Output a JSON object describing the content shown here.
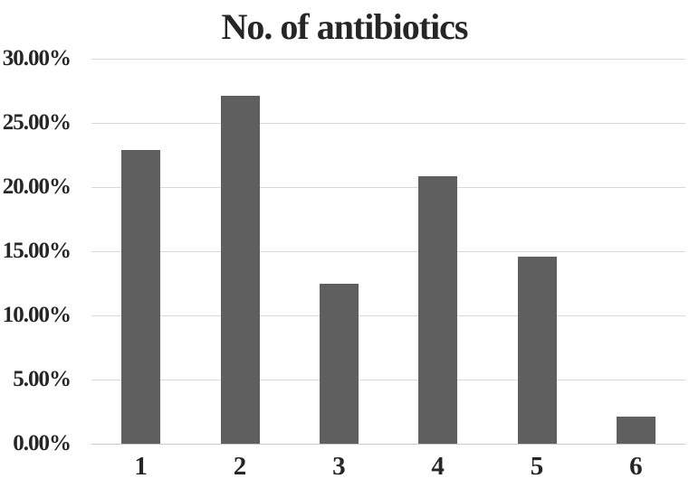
{
  "chart_data": {
    "type": "bar",
    "title": "No. of antibiotics",
    "categories": [
      "1",
      "2",
      "3",
      "4",
      "5",
      "6"
    ],
    "values": [
      22.92,
      27.08,
      12.5,
      20.83,
      14.58,
      2.08
    ],
    "xlabel": "",
    "ylabel": "",
    "ylim": [
      0,
      30
    ],
    "ytick_step": 5,
    "ytick_labels": [
      "0.00%",
      "5.00%",
      "10.00%",
      "15.00%",
      "20.00%",
      "25.00%",
      "30.00%"
    ],
    "grid": true,
    "legend": false,
    "series_count": 1,
    "bar_color": "#5f5f5f",
    "gridline_color": "#d9d9d9",
    "axis_line_color": "#c9c9c9",
    "text_color": "#262626",
    "background_color": "#ffffff"
  }
}
